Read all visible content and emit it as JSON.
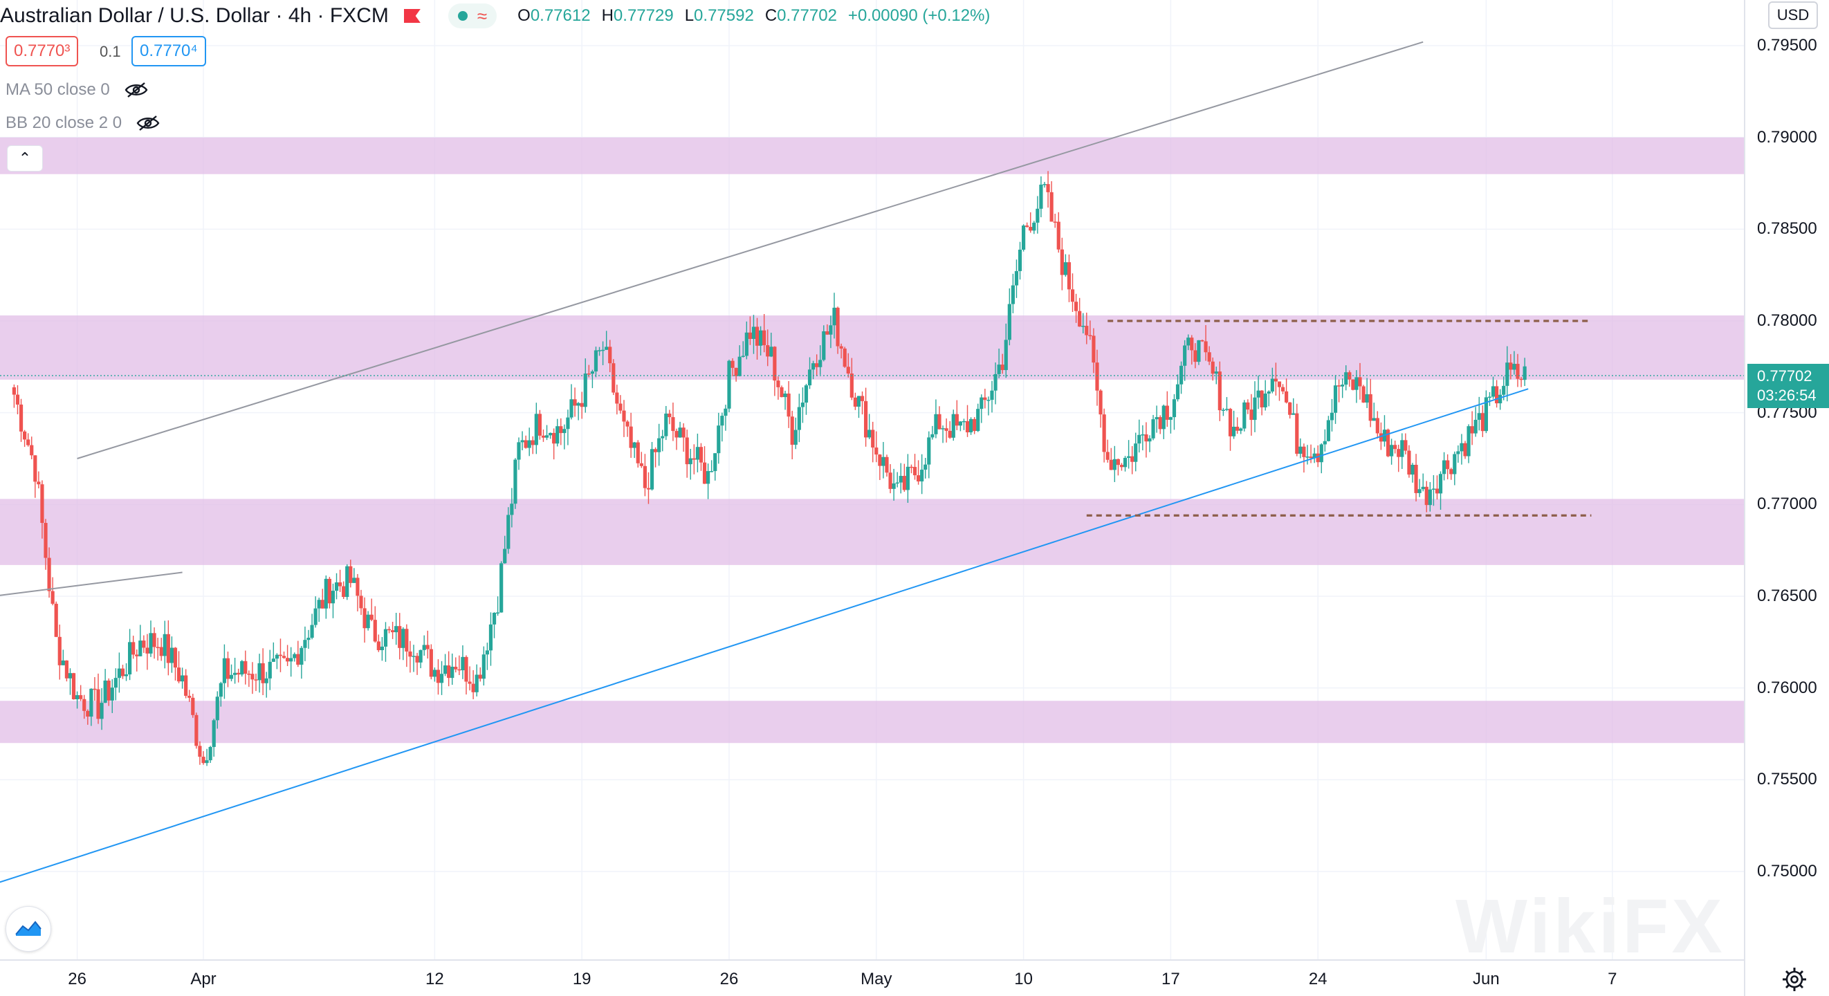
{
  "header": {
    "title": "Australian Dollar / U.S. Dollar",
    "interval": "4h",
    "exchange": "FXCM",
    "ohlc": {
      "o_label": "O",
      "o": "0.77612",
      "h_label": "H",
      "h": "0.77729",
      "l_label": "L",
      "l": "0.77592",
      "c_label": "C",
      "c": "0.77702",
      "change": "+0.00090 (+0.12%)"
    }
  },
  "trade": {
    "sell_price": "0.7770³",
    "spread": "0.1",
    "buy_price": "0.7770⁴"
  },
  "indicators": [
    {
      "label": "MA 50 close 0",
      "icon": "eye-hidden-icon"
    },
    {
      "label": "BB 20 close 2 0",
      "icon": "eye-hidden-icon"
    }
  ],
  "currency_button": "USD",
  "current_price": {
    "value": "0.77702",
    "countdown": "03:26:54"
  },
  "watermark": "WikiFX",
  "colors": {
    "up": "#26a69a",
    "down": "#ef5350",
    "zone": "#e1bee7",
    "trend_blue": "#2196f3",
    "trend_gray": "#9598a1",
    "dashed": "#8d5e4a"
  },
  "chart_data": {
    "type": "candlestick",
    "symbol": "AUD/USD",
    "interval": "4h",
    "x_ticks": [
      "26",
      "Apr",
      "12",
      "19",
      "26",
      "May",
      "10",
      "17",
      "24",
      "Jun",
      "7"
    ],
    "y_ticks": [
      "0.79500",
      "0.79000",
      "0.78500",
      "0.78000",
      "0.77500",
      "0.77000",
      "0.76500",
      "0.76000",
      "0.75500",
      "0.75000"
    ],
    "ylim": [
      0.7465,
      0.797
    ],
    "anchors": [
      [
        "Mar 23",
        0.776
      ],
      [
        "Mar 24",
        0.772
      ],
      [
        "Mar 25",
        0.7625
      ],
      [
        "Mar 26",
        0.7595
      ],
      [
        "Mar 27",
        0.759
      ],
      [
        "Mar 29",
        0.7625
      ],
      [
        "Mar 30",
        0.7625
      ],
      [
        "Mar 31",
        0.7605
      ],
      [
        "Apr 1",
        0.756
      ],
      [
        "Apr 2",
        0.7608
      ],
      [
        "Apr 5",
        0.761
      ],
      [
        "Apr 7",
        0.7655
      ],
      [
        "Apr 8",
        0.7658
      ],
      [
        "Apr 9",
        0.763
      ],
      [
        "Apr 11",
        0.7625
      ],
      [
        "Apr 12",
        0.761
      ],
      [
        "Apr 13",
        0.7615
      ],
      [
        "Apr 14",
        0.7605
      ],
      [
        "Apr 15",
        0.765
      ],
      [
        "Apr 16",
        0.773
      ],
      [
        "Apr 17",
        0.7745
      ],
      [
        "Apr 18",
        0.774
      ],
      [
        "Apr 19",
        0.776
      ],
      [
        "Apr 20",
        0.7785
      ],
      [
        "Apr 21",
        0.774
      ],
      [
        "Apr 22",
        0.771
      ],
      [
        "Apr 23",
        0.7745
      ],
      [
        "Apr 24",
        0.773
      ],
      [
        "Apr 25",
        0.7715
      ],
      [
        "Apr 26",
        0.777
      ],
      [
        "Apr 27",
        0.7795
      ],
      [
        "Apr 28",
        0.778
      ],
      [
        "Apr 29",
        0.774
      ],
      [
        "Apr 30",
        0.778
      ],
      [
        "May 1",
        0.78
      ],
      [
        "May 2",
        0.776
      ],
      [
        "May 3",
        0.773
      ],
      [
        "May 4",
        0.7705
      ],
      [
        "May 5",
        0.772
      ],
      [
        "May 6",
        0.7745
      ],
      [
        "May 7",
        0.774
      ],
      [
        "May 8",
        0.775
      ],
      [
        "May 9",
        0.778
      ],
      [
        "May 10",
        0.785
      ],
      [
        "May 11",
        0.787
      ],
      [
        "May 12",
        0.7825
      ],
      [
        "May 13",
        0.7795
      ],
      [
        "May 14",
        0.7725
      ],
      [
        "May 15",
        0.7725
      ],
      [
        "May 16",
        0.7745
      ],
      [
        "May 17",
        0.7755
      ],
      [
        "May 18",
        0.779
      ],
      [
        "May 19",
        0.777
      ],
      [
        "May 20",
        0.774
      ],
      [
        "May 21",
        0.7755
      ],
      [
        "May 22",
        0.7775
      ],
      [
        "May 23",
        0.7735
      ],
      [
        "May 24",
        0.773
      ],
      [
        "May 25",
        0.7765
      ],
      [
        "May 26",
        0.7765
      ],
      [
        "May 27",
        0.7735
      ],
      [
        "May 28",
        0.773
      ],
      [
        "May 29",
        0.7705
      ],
      [
        "May 30",
        0.772
      ],
      [
        "May 31",
        0.7735
      ],
      [
        "Jun 1",
        0.775
      ],
      [
        "Jun 2",
        0.777
      ]
    ],
    "support_resistance_zones": [
      [
        0.788,
        0.79
      ],
      [
        0.7768,
        0.7803
      ],
      [
        0.7667,
        0.7703
      ],
      [
        0.757,
        0.7593
      ]
    ],
    "horizontal_levels": [
      {
        "price": 0.78,
        "from": "May 14",
        "to": "Jun 6"
      },
      {
        "price": 0.7694,
        "from": "May 13",
        "to": "Jun 6"
      }
    ],
    "trendlines": [
      {
        "color": "blue",
        "from": [
          "Mar 22",
          0.7493
        ],
        "to": [
          "Jun 3",
          0.7763
        ]
      },
      {
        "color": "gray",
        "from": [
          "Mar 26",
          0.7725
        ],
        "to": [
          "May 29",
          0.7952
        ]
      },
      {
        "color": "gray",
        "from": [
          "Mar 22",
          0.765
        ],
        "to": [
          "Mar 31",
          0.7663
        ]
      }
    ]
  }
}
